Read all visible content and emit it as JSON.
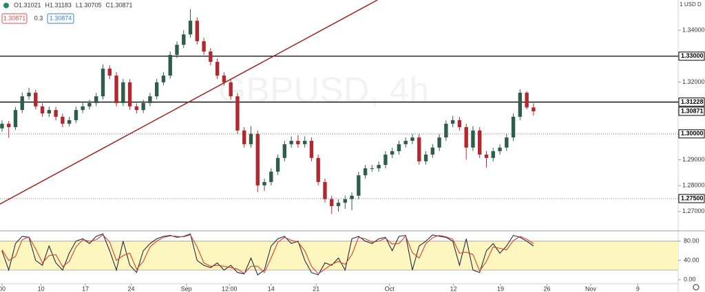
{
  "chart_data": [
    {
      "type": "candlestick",
      "watermark": "GBPUSD, 4h",
      "ohlc_header": [
        "O1.31021",
        "H1.31183",
        "L1.30705",
        "C1.30871"
      ],
      "bid": "1.30871",
      "spread": "0.3",
      "ask": "1.30874",
      "currency_label": "1 USD D",
      "open": [
        1.3021,
        1.3039,
        1.3026,
        1.3092,
        1.3145,
        1.3159,
        1.3106,
        1.3079,
        1.3092,
        1.3066,
        1.3039,
        1.3053,
        1.3092,
        1.3106,
        1.3119,
        1.3145,
        1.3252,
        1.3225,
        1.3119,
        1.3199,
        1.3106,
        1.3092,
        1.3119,
        1.3145,
        1.3199,
        1.3225,
        1.3305,
        1.3344,
        1.3384,
        1.3437,
        1.3358,
        1.3318,
        1.3278,
        1.3225,
        1.3199,
        1.3145,
        1.3013,
        1.296,
        1.3,
        1.2801,
        1.2814,
        1.2854,
        1.2907,
        1.296,
        1.2973,
        1.296,
        1.2973,
        1.2907,
        1.2814,
        1.2748,
        1.2721,
        1.2734,
        1.2748,
        1.2761,
        1.284,
        1.2867,
        1.2867,
        1.288,
        1.292,
        1.2933,
        1.296,
        1.2973,
        1.2986,
        1.2894,
        1.292,
        1.2947,
        1.2986,
        1.3039,
        1.3053,
        1.3026,
        1.2947,
        1.3013,
        1.292,
        1.2907,
        1.2933,
        1.2947,
        1.2986,
        1.3066,
        1.3159,
        1.31021
      ],
      "high": [
        1.3052,
        1.305,
        1.3104,
        1.316,
        1.3178,
        1.317,
        1.3118,
        1.3105,
        1.3104,
        1.3078,
        1.3066,
        1.3105,
        1.312,
        1.3132,
        1.3158,
        1.3268,
        1.3265,
        1.3238,
        1.3212,
        1.3211,
        1.3118,
        1.3132,
        1.3158,
        1.3212,
        1.3238,
        1.3318,
        1.3357,
        1.34,
        1.3482,
        1.345,
        1.3371,
        1.3331,
        1.3291,
        1.3238,
        1.3212,
        1.3158,
        1.3026,
        1.303,
        1.3013,
        1.2827,
        1.2867,
        1.292,
        1.2973,
        1.299,
        1.2995,
        1.299,
        1.2986,
        1.292,
        1.2827,
        1.2761,
        1.2747,
        1.2761,
        1.2774,
        1.2853,
        1.288,
        1.288,
        1.2893,
        1.2933,
        1.2946,
        1.2973,
        1.2986,
        1.3,
        1.2999,
        1.2933,
        1.296,
        1.2999,
        1.3052,
        1.307,
        1.3066,
        1.3039,
        1.303,
        1.3026,
        1.2933,
        1.2946,
        1.296,
        1.2999,
        1.3079,
        1.3172,
        1.3165,
        1.31183
      ],
      "low": [
        1.3008,
        1.2985,
        1.3015,
        1.308,
        1.3132,
        1.3095,
        1.3066,
        1.3065,
        1.3052,
        1.3026,
        1.3028,
        1.3042,
        1.308,
        1.3094,
        1.3107,
        1.3133,
        1.3212,
        1.3106,
        1.3107,
        1.3093,
        1.3079,
        1.308,
        1.3107,
        1.3133,
        1.3187,
        1.3213,
        1.3293,
        1.3332,
        1.3372,
        1.3345,
        1.3305,
        1.3265,
        1.3212,
        1.3186,
        1.3132,
        1.3,
        1.2947,
        1.2947,
        1.2775,
        1.278,
        1.2801,
        1.2841,
        1.2894,
        1.2947,
        1.2947,
        1.2947,
        1.2894,
        1.2801,
        1.2735,
        1.269,
        1.27,
        1.271,
        1.2705,
        1.2748,
        1.2827,
        1.2854,
        1.2854,
        1.2867,
        1.2907,
        1.292,
        1.2947,
        1.296,
        1.2881,
        1.2881,
        1.2907,
        1.2934,
        1.2973,
        1.3026,
        1.3013,
        1.29,
        1.2934,
        1.2907,
        1.287,
        1.2894,
        1.292,
        1.2934,
        1.2973,
        1.3053,
        1.3095,
        1.30705
      ],
      "close": [
        1.3039,
        1.3026,
        1.3092,
        1.3145,
        1.3159,
        1.3106,
        1.3079,
        1.3092,
        1.3066,
        1.3039,
        1.3053,
        1.3092,
        1.3106,
        1.3119,
        1.3145,
        1.3252,
        1.3225,
        1.3119,
        1.3199,
        1.3106,
        1.3092,
        1.3119,
        1.3145,
        1.3199,
        1.3225,
        1.3305,
        1.3344,
        1.3384,
        1.3437,
        1.3358,
        1.3318,
        1.3278,
        1.3225,
        1.3199,
        1.3145,
        1.3013,
        1.296,
        1.3,
        1.2801,
        1.2814,
        1.2854,
        1.2907,
        1.296,
        1.2973,
        1.296,
        1.2973,
        1.2907,
        1.2814,
        1.2748,
        1.2721,
        1.2734,
        1.2748,
        1.2761,
        1.284,
        1.2867,
        1.2867,
        1.288,
        1.292,
        1.2933,
        1.296,
        1.2973,
        1.2986,
        1.2894,
        1.292,
        1.2947,
        1.2986,
        1.3039,
        1.3053,
        1.3026,
        1.2947,
        1.3013,
        1.292,
        1.2907,
        1.2933,
        1.2947,
        1.2986,
        1.3066,
        1.3159,
        1.31021,
        1.30871
      ],
      "up_color": "#2f5d4a",
      "down_color": "#b2282e",
      "xlim": [
        -0.3,
        100.5
      ],
      "xticks": [
        {
          "value": 0,
          "label": "00"
        },
        {
          "value": 5.8,
          "label": "10"
        },
        {
          "value": 12.4,
          "label": "17"
        },
        {
          "value": 19.2,
          "label": "24"
        },
        {
          "value": 27.4,
          "label": "Sep"
        },
        {
          "value": 33.8,
          "label": "12:00"
        },
        {
          "value": 40,
          "label": "14"
        },
        {
          "value": 46.7,
          "label": "21"
        },
        {
          "value": 57.6,
          "label": "Oct"
        },
        {
          "value": 67.1,
          "label": "12"
        },
        {
          "value": 74.1,
          "label": "19"
        },
        {
          "value": 81,
          "label": "26"
        },
        {
          "value": 87.5,
          "label": "Nov"
        },
        {
          "value": 94.5,
          "label": "9"
        }
      ],
      "ylim": [
        1.2628,
        1.3517
      ],
      "yticks": [
        {
          "value": 1.27,
          "label": "1.27000"
        },
        {
          "value": 1.28,
          "label": "1.28000"
        },
        {
          "value": 1.29,
          "label": "1.29000"
        },
        {
          "value": 1.32,
          "label": "1.32000"
        },
        {
          "value": 1.34,
          "label": "1.34000"
        }
      ],
      "hlines": [
        {
          "value": 1.33,
          "label": "1.33000",
          "style": "solid"
        },
        {
          "value": 1.31228,
          "label": "1.31228",
          "style": "solid"
        },
        {
          "value": 1.3,
          "label": "1.30000",
          "style": "dotted"
        },
        {
          "value": 1.275,
          "label": "1.27500",
          "style": "dotted"
        }
      ],
      "price_label": {
        "value": 1.30871,
        "label": "1.30871"
      },
      "trendline": {
        "x": [
          -0.3,
          55.8
        ],
        "y": [
          1.2729,
          1.3517
        ],
        "color": "#a31f1f"
      }
    },
    {
      "type": "stochastic",
      "ylim": [
        -7,
        100
      ],
      "yticks": [
        {
          "value": 80,
          "label": "80.00"
        },
        {
          "value": 40,
          "label": "40.00"
        },
        {
          "value": 0,
          "label": "0.00"
        }
      ],
      "band": [
        20,
        80
      ],
      "band_color": "#fdf6bf",
      "series": [
        {
          "color": "#1f2a44",
          "values": [
            60,
            20,
            75,
            90,
            88,
            40,
            30,
            70,
            35,
            20,
            55,
            80,
            85,
            75,
            90,
            95,
            60,
            20,
            80,
            30,
            15,
            60,
            75,
            85,
            90,
            92,
            88,
            90,
            95,
            40,
            30,
            25,
            35,
            20,
            30,
            15,
            12,
            45,
            10,
            20,
            70,
            85,
            90,
            75,
            80,
            40,
            15,
            10,
            35,
            30,
            45,
            20,
            85,
            90,
            80,
            75,
            85,
            88,
            60,
            90,
            92,
            20,
            70,
            80,
            93,
            90,
            88,
            80,
            30,
            85,
            20,
            15,
            60,
            75,
            55,
            70,
            92,
            88,
            80,
            70
          ]
        },
        {
          "color": "#d9402b",
          "values": [
            62,
            40,
            48,
            83,
            89,
            64,
            35,
            50,
            52,
            27,
            38,
            68,
            83,
            80,
            83,
            93,
            78,
            40,
            50,
            55,
            22,
            38,
            68,
            80,
            88,
            91,
            90,
            89,
            93,
            68,
            35,
            28,
            30,
            28,
            25,
            22,
            13,
            28,
            28,
            15,
            45,
            78,
            88,
            82,
            78,
            60,
            28,
            12,
            22,
            32,
            38,
            32,
            52,
            88,
            85,
            78,
            80,
            86,
            74,
            75,
            91,
            56,
            45,
            75,
            87,
            92,
            89,
            84,
            55,
            57,
            52,
            18,
            38,
            68,
            65,
            62,
            81,
            90,
            84,
            75
          ]
        }
      ]
    }
  ]
}
